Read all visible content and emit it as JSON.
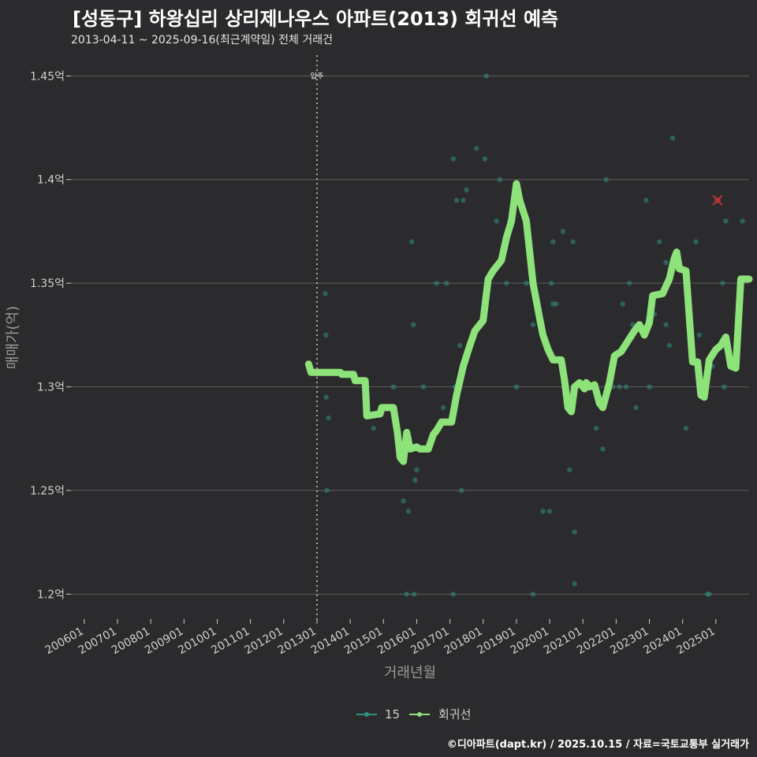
{
  "chart_data": {
    "type": "scatter",
    "title": "[성동구] 하왕십리 상리제나우스 아파트(2013) 회귀선 예측",
    "subtitle": "2013-04-11 ~ 2025-09-16(최근계약일) 전체 거래건",
    "xlabel": "거래년월",
    "ylabel": "매매가(억)",
    "footer": "©디아파트(dapt.kr) / 2025.10.15 / 자료=국토교통부 실거래가",
    "x_ticks": [
      "200601",
      "200701",
      "200801",
      "200901",
      "201001",
      "201101",
      "201201",
      "201301",
      "201401",
      "201501",
      "201601",
      "201701",
      "201801",
      "201901",
      "202001",
      "202101",
      "202201",
      "202301",
      "202401",
      "202501"
    ],
    "y_ticks": [
      1.2,
      1.25,
      1.3,
      1.35,
      1.4,
      1.45
    ],
    "y_tick_labels": [
      "1.2억",
      "1.25억",
      "1.3억",
      "1.35억",
      "1.4억",
      "1.45억"
    ],
    "xlim": [
      2005.6,
      2026.0
    ],
    "ylim": [
      1.188,
      1.46
    ],
    "annotation": {
      "x": 2013.0,
      "label": "입주"
    },
    "colors": {
      "points": "#2f8f80",
      "line": "#8ee27a",
      "outlier": "#b83434",
      "grid": "#5e5e5e",
      "background": "#2b2b2d"
    },
    "legend": [
      {
        "name": "15",
        "color": "#2f8f80"
      },
      {
        "name": "회귀선",
        "color": "#8ee27a"
      }
    ],
    "series": [
      {
        "name": "15",
        "points": [
          [
            2013.25,
            1.345
          ],
          [
            2013.27,
            1.325
          ],
          [
            2013.3,
            1.25
          ],
          [
            2013.28,
            1.295
          ],
          [
            2013.35,
            1.285
          ],
          [
            2014.7,
            1.28
          ],
          [
            2015.3,
            1.3
          ],
          [
            2015.6,
            1.245
          ],
          [
            2015.75,
            1.24
          ],
          [
            2015.7,
            1.2
          ],
          [
            2015.85,
            1.37
          ],
          [
            2015.9,
            1.33
          ],
          [
            2015.95,
            1.255
          ],
          [
            2016.0,
            1.26
          ],
          [
            2015.92,
            1.2
          ],
          [
            2016.2,
            1.3
          ],
          [
            2016.6,
            1.35
          ],
          [
            2016.8,
            1.29
          ],
          [
            2016.9,
            1.35
          ],
          [
            2017.1,
            1.41
          ],
          [
            2017.15,
            1.3
          ],
          [
            2017.2,
            1.39
          ],
          [
            2017.3,
            1.32
          ],
          [
            2017.35,
            1.25
          ],
          [
            2017.1,
            1.2
          ],
          [
            2017.5,
            1.395
          ],
          [
            2017.4,
            1.39
          ],
          [
            2017.8,
            1.415
          ],
          [
            2018.1,
            1.45
          ],
          [
            2018.05,
            1.41
          ],
          [
            2018.4,
            1.38
          ],
          [
            2018.5,
            1.4
          ],
          [
            2018.8,
            1.38
          ],
          [
            2018.7,
            1.35
          ],
          [
            2019.0,
            1.3
          ],
          [
            2019.3,
            1.35
          ],
          [
            2019.5,
            1.33
          ],
          [
            2019.5,
            1.2
          ],
          [
            2019.8,
            1.24
          ],
          [
            2020.0,
            1.24
          ],
          [
            2020.05,
            1.35
          ],
          [
            2020.1,
            1.37
          ],
          [
            2020.1,
            1.34
          ],
          [
            2020.2,
            1.34
          ],
          [
            2020.4,
            1.375
          ],
          [
            2020.6,
            1.26
          ],
          [
            2020.7,
            1.37
          ],
          [
            2020.75,
            1.23
          ],
          [
            2020.75,
            1.205
          ],
          [
            2021.4,
            1.28
          ],
          [
            2021.6,
            1.27
          ],
          [
            2021.7,
            1.4
          ],
          [
            2021.9,
            1.3
          ],
          [
            2022.1,
            1.3
          ],
          [
            2022.2,
            1.34
          ],
          [
            2022.3,
            1.3
          ],
          [
            2022.4,
            1.35
          ],
          [
            2022.5,
            1.33
          ],
          [
            2022.6,
            1.29
          ],
          [
            2022.9,
            1.39
          ],
          [
            2023.0,
            1.3
          ],
          [
            2023.15,
            1.335
          ],
          [
            2023.3,
            1.37
          ],
          [
            2023.5,
            1.36
          ],
          [
            2023.5,
            1.33
          ],
          [
            2023.6,
            1.32
          ],
          [
            2023.7,
            1.42
          ],
          [
            2024.1,
            1.28
          ],
          [
            2024.4,
            1.37
          ],
          [
            2024.5,
            1.325
          ],
          [
            2024.75,
            1.2
          ],
          [
            2024.8,
            1.2
          ],
          [
            2024.9,
            1.31
          ],
          [
            2025.1,
            1.32
          ],
          [
            2025.2,
            1.35
          ],
          [
            2025.3,
            1.38
          ],
          [
            2025.25,
            1.3
          ],
          [
            2025.8,
            1.38
          ]
        ]
      },
      {
        "name": "회귀선",
        "points": [
          [
            2012.75,
            1.311
          ],
          [
            2012.82,
            1.307
          ],
          [
            2013.7,
            1.307
          ],
          [
            2013.75,
            1.306
          ],
          [
            2014.1,
            1.306
          ],
          [
            2014.15,
            1.303
          ],
          [
            2014.45,
            1.303
          ],
          [
            2014.5,
            1.286
          ],
          [
            2014.9,
            1.287
          ],
          [
            2014.95,
            1.29
          ],
          [
            2015.3,
            1.29
          ],
          [
            2015.42,
            1.278
          ],
          [
            2015.5,
            1.266
          ],
          [
            2015.6,
            1.264
          ],
          [
            2015.7,
            1.278
          ],
          [
            2015.8,
            1.27
          ],
          [
            2016.0,
            1.271
          ],
          [
            2016.1,
            1.27
          ],
          [
            2016.35,
            1.27
          ],
          [
            2016.5,
            1.277
          ],
          [
            2016.6,
            1.279
          ],
          [
            2016.75,
            1.283
          ],
          [
            2017.05,
            1.283
          ],
          [
            2017.2,
            1.296
          ],
          [
            2017.4,
            1.31
          ],
          [
            2017.6,
            1.32
          ],
          [
            2017.75,
            1.327
          ],
          [
            2017.9,
            1.33
          ],
          [
            2018.0,
            1.332
          ],
          [
            2018.15,
            1.352
          ],
          [
            2018.3,
            1.356
          ],
          [
            2018.55,
            1.361
          ],
          [
            2018.7,
            1.372
          ],
          [
            2018.85,
            1.38
          ],
          [
            2019.0,
            1.398
          ],
          [
            2019.1,
            1.39
          ],
          [
            2019.3,
            1.38
          ],
          [
            2019.5,
            1.35
          ],
          [
            2019.7,
            1.333
          ],
          [
            2019.8,
            1.325
          ],
          [
            2019.95,
            1.318
          ],
          [
            2020.1,
            1.313
          ],
          [
            2020.35,
            1.313
          ],
          [
            2020.45,
            1.303
          ],
          [
            2020.55,
            1.29
          ],
          [
            2020.65,
            1.288
          ],
          [
            2020.75,
            1.3
          ],
          [
            2020.9,
            1.302
          ],
          [
            2021.05,
            1.299
          ],
          [
            2021.1,
            1.302
          ],
          [
            2021.2,
            1.3
          ],
          [
            2021.35,
            1.301
          ],
          [
            2021.5,
            1.292
          ],
          [
            2021.6,
            1.29
          ],
          [
            2021.8,
            1.302
          ],
          [
            2021.95,
            1.315
          ],
          [
            2022.15,
            1.317
          ],
          [
            2022.35,
            1.322
          ],
          [
            2022.55,
            1.327
          ],
          [
            2022.7,
            1.33
          ],
          [
            2022.85,
            1.325
          ],
          [
            2023.0,
            1.331
          ],
          [
            2023.1,
            1.344
          ],
          [
            2023.4,
            1.345
          ],
          [
            2023.6,
            1.352
          ],
          [
            2023.75,
            1.362
          ],
          [
            2023.82,
            1.365
          ],
          [
            2023.9,
            1.357
          ],
          [
            2024.1,
            1.356
          ],
          [
            2024.3,
            1.312
          ],
          [
            2024.45,
            1.312
          ],
          [
            2024.55,
            1.296
          ],
          [
            2024.65,
            1.295
          ],
          [
            2024.8,
            1.313
          ],
          [
            2025.0,
            1.318
          ],
          [
            2025.15,
            1.32
          ],
          [
            2025.3,
            1.324
          ],
          [
            2025.45,
            1.31
          ],
          [
            2025.6,
            1.309
          ],
          [
            2025.75,
            1.352
          ],
          [
            2026.0,
            1.352
          ]
        ]
      }
    ],
    "outlier": [
      2025.05,
      1.39
    ]
  }
}
